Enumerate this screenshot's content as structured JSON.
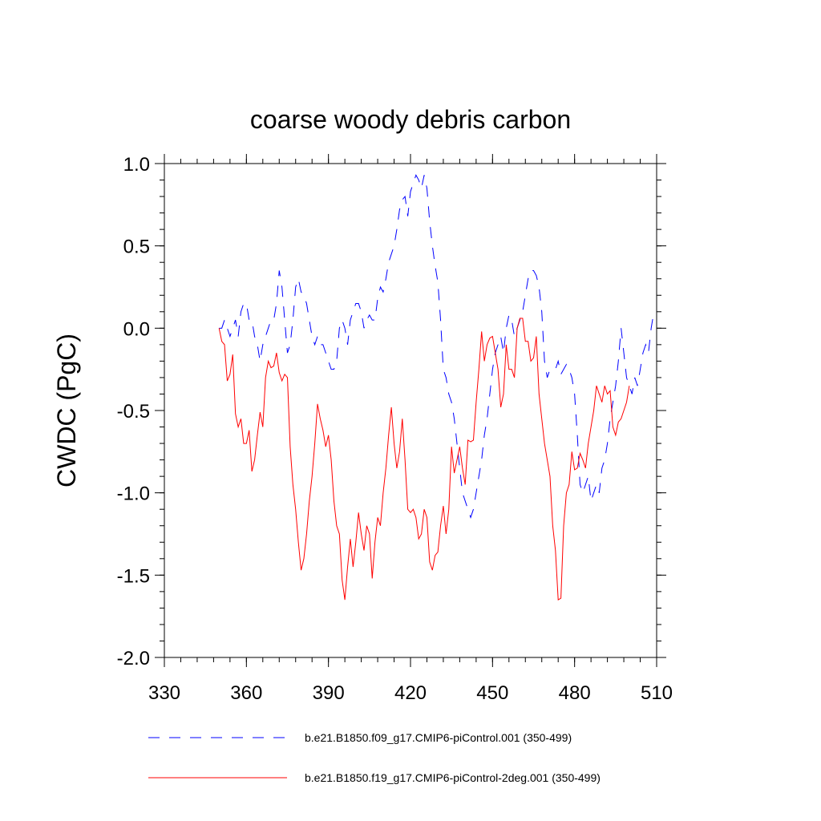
{
  "chart_data": {
    "type": "line",
    "title": "coarse woody debris carbon",
    "xlabel": "",
    "ylabel": "CWDC  (PgC)",
    "xlim": [
      330,
      510
    ],
    "ylim": [
      -2.0,
      1.0
    ],
    "xticks": [
      330,
      360,
      390,
      420,
      450,
      480,
      510
    ],
    "xtick_labels": [
      "330",
      "360",
      "390",
      "420",
      "450",
      "480",
      "510"
    ],
    "yticks": [
      -2.0,
      -1.5,
      -1.0,
      -0.5,
      0.0,
      0.5,
      1.0
    ],
    "ytick_labels": [
      "-2.0",
      "-1.5",
      "-1.0",
      "-0.5",
      "0.0",
      "0.5",
      "1.0"
    ],
    "x_start": 350,
    "x_step": 1,
    "legend_position": "bottom",
    "series": [
      {
        "name": "b.e21.B1850.f09_g17.CMIP6-piControl.001 (350-499)",
        "color": "#0000ff",
        "dash": "dashed",
        "values": [
          0.0,
          0.0,
          0.05,
          0.0,
          -0.05,
          0.0,
          0.05,
          -0.05,
          0.1,
          0.15,
          0.15,
          0.05,
          0.05,
          -0.05,
          -0.1,
          -0.2,
          -0.1,
          -0.05,
          0.0,
          0.05,
          0.05,
          0.15,
          0.35,
          0.25,
          0.05,
          -0.15,
          -0.1,
          0.05,
          0.25,
          0.3,
          0.22,
          0.2,
          0.15,
          0.05,
          -0.05,
          -0.1,
          -0.05,
          -0.1,
          -0.1,
          -0.15,
          -0.2,
          -0.25,
          -0.25,
          -0.2,
          0.0,
          0.05,
          0.0,
          -0.1,
          0.05,
          0.1,
          0.15,
          0.15,
          0.1,
          0.0,
          0.05,
          0.08,
          0.05,
          0.05,
          0.18,
          0.25,
          0.22,
          0.3,
          0.4,
          0.45,
          0.5,
          0.6,
          0.72,
          0.78,
          0.8,
          0.68,
          0.83,
          0.88,
          0.93,
          0.9,
          0.85,
          0.93,
          0.85,
          0.65,
          0.5,
          0.38,
          0.28,
          0.05,
          -0.25,
          -0.3,
          -0.4,
          -0.45,
          -0.55,
          -0.7,
          -0.85,
          -1.0,
          -1.05,
          -1.1,
          -1.15,
          -1.1,
          -1.0,
          -0.9,
          -0.8,
          -0.65,
          -0.55,
          -0.4,
          -0.25,
          -0.15,
          -0.1,
          -0.05,
          -0.15,
          0.0,
          0.08,
          0.05,
          -0.05,
          0.0,
          0.05,
          0.1,
          0.2,
          0.3,
          0.35,
          0.35,
          0.32,
          0.25,
          0.1,
          -0.2,
          -0.3,
          -0.25,
          -0.25,
          -0.25,
          -0.2,
          -0.28,
          -0.25,
          -0.22,
          -0.25,
          -0.3,
          -0.4,
          -0.65,
          -0.95,
          -1.0,
          -0.95,
          -0.9,
          -1.05,
          -1.0,
          -0.95,
          -1.0,
          -0.85,
          -0.8,
          -0.7,
          -0.55,
          -0.45,
          -0.35,
          -0.2,
          0.0,
          -0.15,
          -0.3,
          -0.35,
          -0.4,
          -0.3,
          -0.35,
          -0.25,
          -0.15,
          -0.1,
          -0.15,
          0.0,
          0.1
        ]
      },
      {
        "name": "b.e21.B1850.f19_g17.CMIP6-piControl-2deg.001 (350-499)",
        "color": "#ff0000",
        "dash": "solid",
        "values": [
          0.0,
          -0.08,
          -0.1,
          -0.32,
          -0.28,
          -0.16,
          -0.52,
          -0.6,
          -0.55,
          -0.7,
          -0.7,
          -0.62,
          -0.87,
          -0.8,
          -0.65,
          -0.51,
          -0.6,
          -0.3,
          -0.2,
          -0.24,
          -0.23,
          -0.15,
          -0.27,
          -0.32,
          -0.28,
          -0.3,
          -0.72,
          -0.95,
          -1.1,
          -1.3,
          -1.47,
          -1.4,
          -1.25,
          -1.05,
          -0.9,
          -0.7,
          -0.46,
          -0.55,
          -0.62,
          -0.72,
          -0.65,
          -0.8,
          -1.05,
          -1.2,
          -1.25,
          -1.53,
          -1.65,
          -1.45,
          -1.28,
          -1.45,
          -1.3,
          -1.12,
          -1.25,
          -1.35,
          -1.2,
          -1.25,
          -1.52,
          -1.3,
          -1.15,
          -1.2,
          -1.0,
          -0.85,
          -0.65,
          -0.48,
          -0.7,
          -0.85,
          -0.75,
          -0.55,
          -0.8,
          -1.1,
          -1.12,
          -1.1,
          -1.15,
          -1.28,
          -1.25,
          -1.1,
          -1.15,
          -1.42,
          -1.47,
          -1.38,
          -1.36,
          -1.2,
          -1.08,
          -1.25,
          -1.1,
          -0.72,
          -0.88,
          -0.8,
          -0.72,
          -0.85,
          -0.95,
          -0.68,
          -0.69,
          -0.68,
          -0.45,
          -0.25,
          -0.02,
          -0.2,
          -0.1,
          -0.06,
          -0.05,
          -0.15,
          -0.25,
          -0.48,
          -0.4,
          -0.1,
          -0.25,
          -0.25,
          -0.3,
          0.0,
          0.06,
          0.06,
          -0.08,
          -0.08,
          -0.2,
          -0.18,
          -0.05,
          -0.4,
          -0.55,
          -0.7,
          -0.8,
          -0.9,
          -1.2,
          -1.35,
          -1.65,
          -1.64,
          -1.2,
          -1.0,
          -0.95,
          -0.75,
          -0.86,
          -0.85,
          -0.76,
          -0.8,
          -0.85,
          -0.7,
          -0.6,
          -0.5,
          -0.35,
          -0.4,
          -0.45,
          -0.35,
          -0.4,
          -0.38,
          -0.6,
          -0.65,
          -0.57,
          -0.55,
          -0.5,
          -0.45,
          -0.35
        ]
      }
    ]
  }
}
